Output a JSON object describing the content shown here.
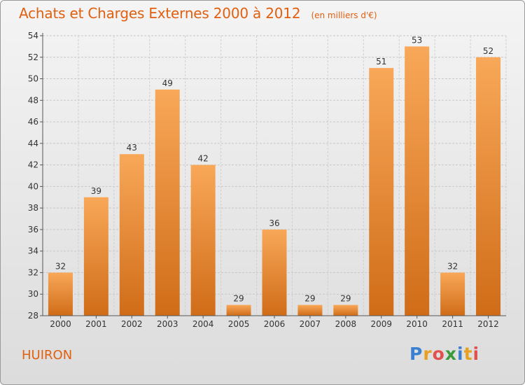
{
  "header": {
    "title": "Achats et Charges Externes 2000 à 2012",
    "subtitle": "(en milliers d'€)"
  },
  "footer": {
    "place": "HUIRON",
    "logo_letters": [
      {
        "ch": "P",
        "color": "#3a7fd0"
      },
      {
        "ch": "r",
        "color": "#e8a020"
      },
      {
        "ch": "o",
        "color": "#e05050"
      },
      {
        "ch": "x",
        "color": "#3a9a3a"
      },
      {
        "ch": "i",
        "color": "#3a7fd0"
      },
      {
        "ch": "t",
        "color": "#e8a020"
      },
      {
        "ch": "i",
        "color": "#e05050"
      }
    ]
  },
  "chart_data": {
    "type": "bar",
    "categories": [
      "2000",
      "2001",
      "2002",
      "2003",
      "2004",
      "2005",
      "2006",
      "2007",
      "2008",
      "2009",
      "2010",
      "2011",
      "2012"
    ],
    "values": [
      32,
      39,
      43,
      49,
      42,
      29,
      36,
      29,
      29,
      51,
      53,
      32,
      52
    ],
    "ylim": [
      28,
      54
    ],
    "yticks": [
      28,
      30,
      32,
      34,
      36,
      38,
      40,
      42,
      44,
      46,
      48,
      50,
      52,
      54
    ],
    "grid": true,
    "bar_color_light": "#f8a858",
    "bar_color_dark": "#d06c18"
  }
}
